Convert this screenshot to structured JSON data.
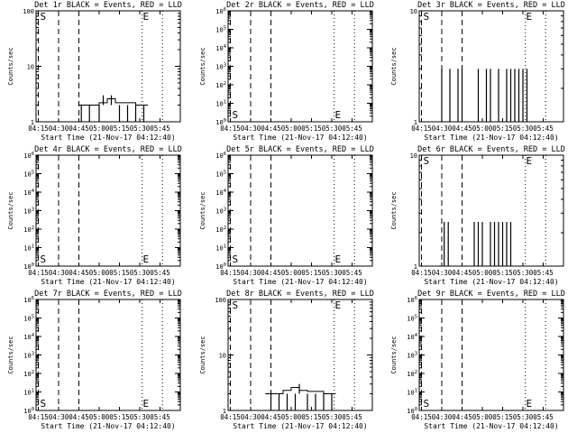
{
  "figure": {
    "background": "#ffffff",
    "foreground": "#000000"
  },
  "chart_data": [
    {
      "type": "line",
      "title": "Det 1r BLACK = Events, RED = LLD",
      "xlabel": "Start Time (21-Nov-17 04:12:40)",
      "ylabel": "Counts/sec",
      "xticks": [
        "04:15",
        "04:30",
        "04:45",
        "05:00",
        "05:15",
        "05:30",
        "05:45"
      ],
      "yscale": "log",
      "ylim": [
        1,
        100
      ],
      "yticks": [
        {
          "value": 1,
          "label": "1"
        },
        {
          "value": 10,
          "label": "10"
        },
        {
          "value": 100,
          "label": "100"
        }
      ],
      "markers": {
        "S": "04:15",
        "E": "05:31"
      },
      "series": [
        {
          "values": [
            [
              4.75,
              2
            ],
            [
              4.9,
              2
            ],
            [
              5.0,
              2.2
            ],
            [
              5.1,
              2.6
            ],
            [
              5.2,
              2.2
            ],
            [
              5.3,
              2.2
            ],
            [
              5.45,
              2
            ],
            [
              5.55,
              2
            ],
            [
              5.6,
              2
            ]
          ],
          "spikes": [
            [
              4.78,
              1
            ],
            [
              4.88,
              1
            ],
            [
              5.0,
              1
            ],
            [
              5.05,
              3
            ],
            [
              5.15,
              3
            ],
            [
              5.25,
              1
            ],
            [
              5.35,
              1
            ],
            [
              5.45,
              1
            ],
            [
              5.55,
              1
            ]
          ]
        }
      ]
    },
    {
      "type": "line",
      "title": "Det 2r BLACK = Events, RED = LLD",
      "xlabel": "Start Time (21-Nov-17 04:12:40)",
      "ylabel": "Counts/sec",
      "xticks": [
        "04:15",
        "04:30",
        "04:45",
        "05:00",
        "05:15",
        "05:30",
        "05:45"
      ],
      "yscale": "log",
      "ylim": [
        1,
        1000000
      ],
      "yticks": [
        {
          "value": 1,
          "label": "10^0"
        },
        {
          "value": 10,
          "label": "10^1"
        },
        {
          "value": 100,
          "label": "10^2"
        },
        {
          "value": 1000,
          "label": "10^3"
        },
        {
          "value": 10000,
          "label": "10^4"
        },
        {
          "value": 100000,
          "label": "10^5"
        },
        {
          "value": 1000000,
          "label": "10^6"
        }
      ],
      "markers": {
        "S": "04:15",
        "E": "05:31"
      },
      "series": []
    },
    {
      "type": "line",
      "title": "Det 3r BLACK = Events, RED = LLD",
      "xlabel": "Start Time (21-Nov-17 04:12:40)",
      "ylabel": "Counts/sec",
      "xticks": [
        "04:15",
        "04:30",
        "04:45",
        "05:00",
        "05:15",
        "05:30",
        "05:45"
      ],
      "yscale": "log",
      "ylim": [
        1,
        10
      ],
      "yticks": [
        {
          "value": 1,
          "label": "1"
        },
        {
          "value": 10,
          "label": "10"
        }
      ],
      "markers": {
        "S": "04:15",
        "E": "05:31"
      },
      "series": [
        {
          "values": [],
          "spikes": [
            [
              4.5,
              3
            ],
            [
              4.6,
              3
            ],
            [
              4.7,
              3
            ],
            [
              4.75,
              3
            ],
            [
              4.95,
              3
            ],
            [
              5.05,
              3
            ],
            [
              5.1,
              3
            ],
            [
              5.2,
              3
            ],
            [
              5.3,
              3
            ],
            [
              5.35,
              3
            ],
            [
              5.4,
              3
            ],
            [
              5.45,
              3
            ],
            [
              5.5,
              3
            ],
            [
              5.55,
              3
            ]
          ]
        }
      ]
    },
    {
      "type": "line",
      "title": "Det 4r BLACK = Events, RED = LLD",
      "xlabel": "Start Time (21-Nov-17 04:12:40)",
      "ylabel": "Counts/sec",
      "xticks": [
        "04:15",
        "04:30",
        "04:45",
        "05:00",
        "05:15",
        "05:30",
        "05:45"
      ],
      "yscale": "log",
      "ylim": [
        1,
        1000000
      ],
      "yticks": [
        {
          "value": 1,
          "label": "10^0"
        },
        {
          "value": 10,
          "label": "10^1"
        },
        {
          "value": 100,
          "label": "10^2"
        },
        {
          "value": 1000,
          "label": "10^3"
        },
        {
          "value": 10000,
          "label": "10^4"
        },
        {
          "value": 100000,
          "label": "10^5"
        },
        {
          "value": 1000000,
          "label": "10^6"
        }
      ],
      "markers": {
        "S": "04:15",
        "E": "05:31"
      },
      "series": []
    },
    {
      "type": "line",
      "title": "Det 5r BLACK = Events, RED = LLD",
      "xlabel": "Start Time (21-Nov-17 04:12:40)",
      "ylabel": "Counts/sec",
      "xticks": [
        "04:15",
        "04:30",
        "04:45",
        "05:00",
        "05:15",
        "05:30",
        "05:45"
      ],
      "yscale": "log",
      "ylim": [
        1,
        1000000
      ],
      "yticks": [
        {
          "value": 1,
          "label": "10^0"
        },
        {
          "value": 10,
          "label": "10^1"
        },
        {
          "value": 100,
          "label": "10^2"
        },
        {
          "value": 1000,
          "label": "10^3"
        },
        {
          "value": 10000,
          "label": "10^4"
        },
        {
          "value": 100000,
          "label": "10^5"
        },
        {
          "value": 1000000,
          "label": "10^6"
        }
      ],
      "markers": {
        "S": "04:15",
        "E": "05:31"
      },
      "series": []
    },
    {
      "type": "line",
      "title": "Det 6r BLACK = Events, RED = LLD",
      "xlabel": "Start Time (21-Nov-17 04:12:40)",
      "ylabel": "Counts/sec",
      "xticks": [
        "04:15",
        "04:30",
        "04:45",
        "05:00",
        "05:15",
        "05:30",
        "05:45"
      ],
      "yscale": "log",
      "ylim": [
        1,
        10
      ],
      "yticks": [
        {
          "value": 1,
          "label": "1"
        },
        {
          "value": 10,
          "label": "10"
        }
      ],
      "markers": {
        "S": "04:15",
        "E": "05:31"
      },
      "series": [
        {
          "values": [],
          "spikes": [
            [
              4.53,
              2.5
            ],
            [
              4.58,
              2.5
            ],
            [
              4.9,
              2.5
            ],
            [
              4.95,
              2.5
            ],
            [
              5.0,
              2.5
            ],
            [
              5.1,
              2.5
            ],
            [
              5.15,
              2.5
            ],
            [
              5.2,
              2.5
            ],
            [
              5.25,
              2.5
            ],
            [
              5.3,
              2.5
            ],
            [
              5.35,
              2.5
            ]
          ]
        }
      ]
    },
    {
      "type": "line",
      "title": "Det 7r BLACK = Events, RED = LLD",
      "xlabel": "Start Time (21-Nov-17 04:12:40)",
      "ylabel": "Counts/sec",
      "xticks": [
        "04:15",
        "04:30",
        "04:45",
        "05:00",
        "05:15",
        "05:30",
        "05:45"
      ],
      "yscale": "log",
      "ylim": [
        1,
        1000000
      ],
      "yticks": [
        {
          "value": 1,
          "label": "10^0"
        },
        {
          "value": 10,
          "label": "10^1"
        },
        {
          "value": 100,
          "label": "10^2"
        },
        {
          "value": 1000,
          "label": "10^3"
        },
        {
          "value": 10000,
          "label": "10^4"
        },
        {
          "value": 100000,
          "label": "10^5"
        },
        {
          "value": 1000000,
          "label": "10^6"
        }
      ],
      "markers": {
        "S": "04:15",
        "E": "05:31"
      },
      "series": []
    },
    {
      "type": "line",
      "title": "Det 8r BLACK = Events, RED = LLD",
      "xlabel": "Start Time (21-Nov-17 04:12:40)",
      "ylabel": "Counts/sec",
      "xticks": [
        "04:15",
        "04:30",
        "04:45",
        "05:00",
        "05:15",
        "05:30",
        "05:45"
      ],
      "yscale": "log",
      "ylim": [
        1,
        100
      ],
      "yticks": [
        {
          "value": 1,
          "label": "1"
        },
        {
          "value": 10,
          "label": "10"
        },
        {
          "value": 100,
          "label": "100"
        }
      ],
      "markers": {
        "S": "04:15",
        "E": "05:31"
      },
      "series": [
        {
          "values": [
            [
              4.68,
              2
            ],
            [
              4.8,
              2
            ],
            [
              4.9,
              2.3
            ],
            [
              5.0,
              2.6
            ],
            [
              5.1,
              2.3
            ],
            [
              5.2,
              2.2
            ],
            [
              5.3,
              2.2
            ],
            [
              5.4,
              2
            ],
            [
              5.5,
              2
            ],
            [
              5.55,
              2
            ]
          ],
          "spikes": [
            [
              4.75,
              1
            ],
            [
              4.85,
              1
            ],
            [
              4.95,
              1
            ],
            [
              5.05,
              1
            ],
            [
              5.1,
              3
            ],
            [
              5.2,
              1
            ],
            [
              5.3,
              1
            ],
            [
              5.4,
              1
            ],
            [
              5.5,
              1
            ]
          ]
        }
      ]
    },
    {
      "type": "line",
      "title": "Det 9r BLACK = Events, RED = LLD",
      "xlabel": "Start Time (21-Nov-17 04:12:40)",
      "ylabel": "Counts/sec",
      "xticks": [
        "04:15",
        "04:30",
        "04:45",
        "05:00",
        "05:15",
        "05:30",
        "05:45"
      ],
      "yscale": "log",
      "ylim": [
        1,
        1000000
      ],
      "yticks": [
        {
          "value": 1,
          "label": "10^0"
        },
        {
          "value": 10,
          "label": "10^1"
        },
        {
          "value": 100,
          "label": "10^2"
        },
        {
          "value": 1000,
          "label": "10^3"
        },
        {
          "value": 10000,
          "label": "10^4"
        },
        {
          "value": 100000,
          "label": "10^5"
        },
        {
          "value": 1000000,
          "label": "10^6"
        }
      ],
      "markers": {
        "S": "04:15",
        "E": "05:31"
      },
      "series": []
    }
  ]
}
